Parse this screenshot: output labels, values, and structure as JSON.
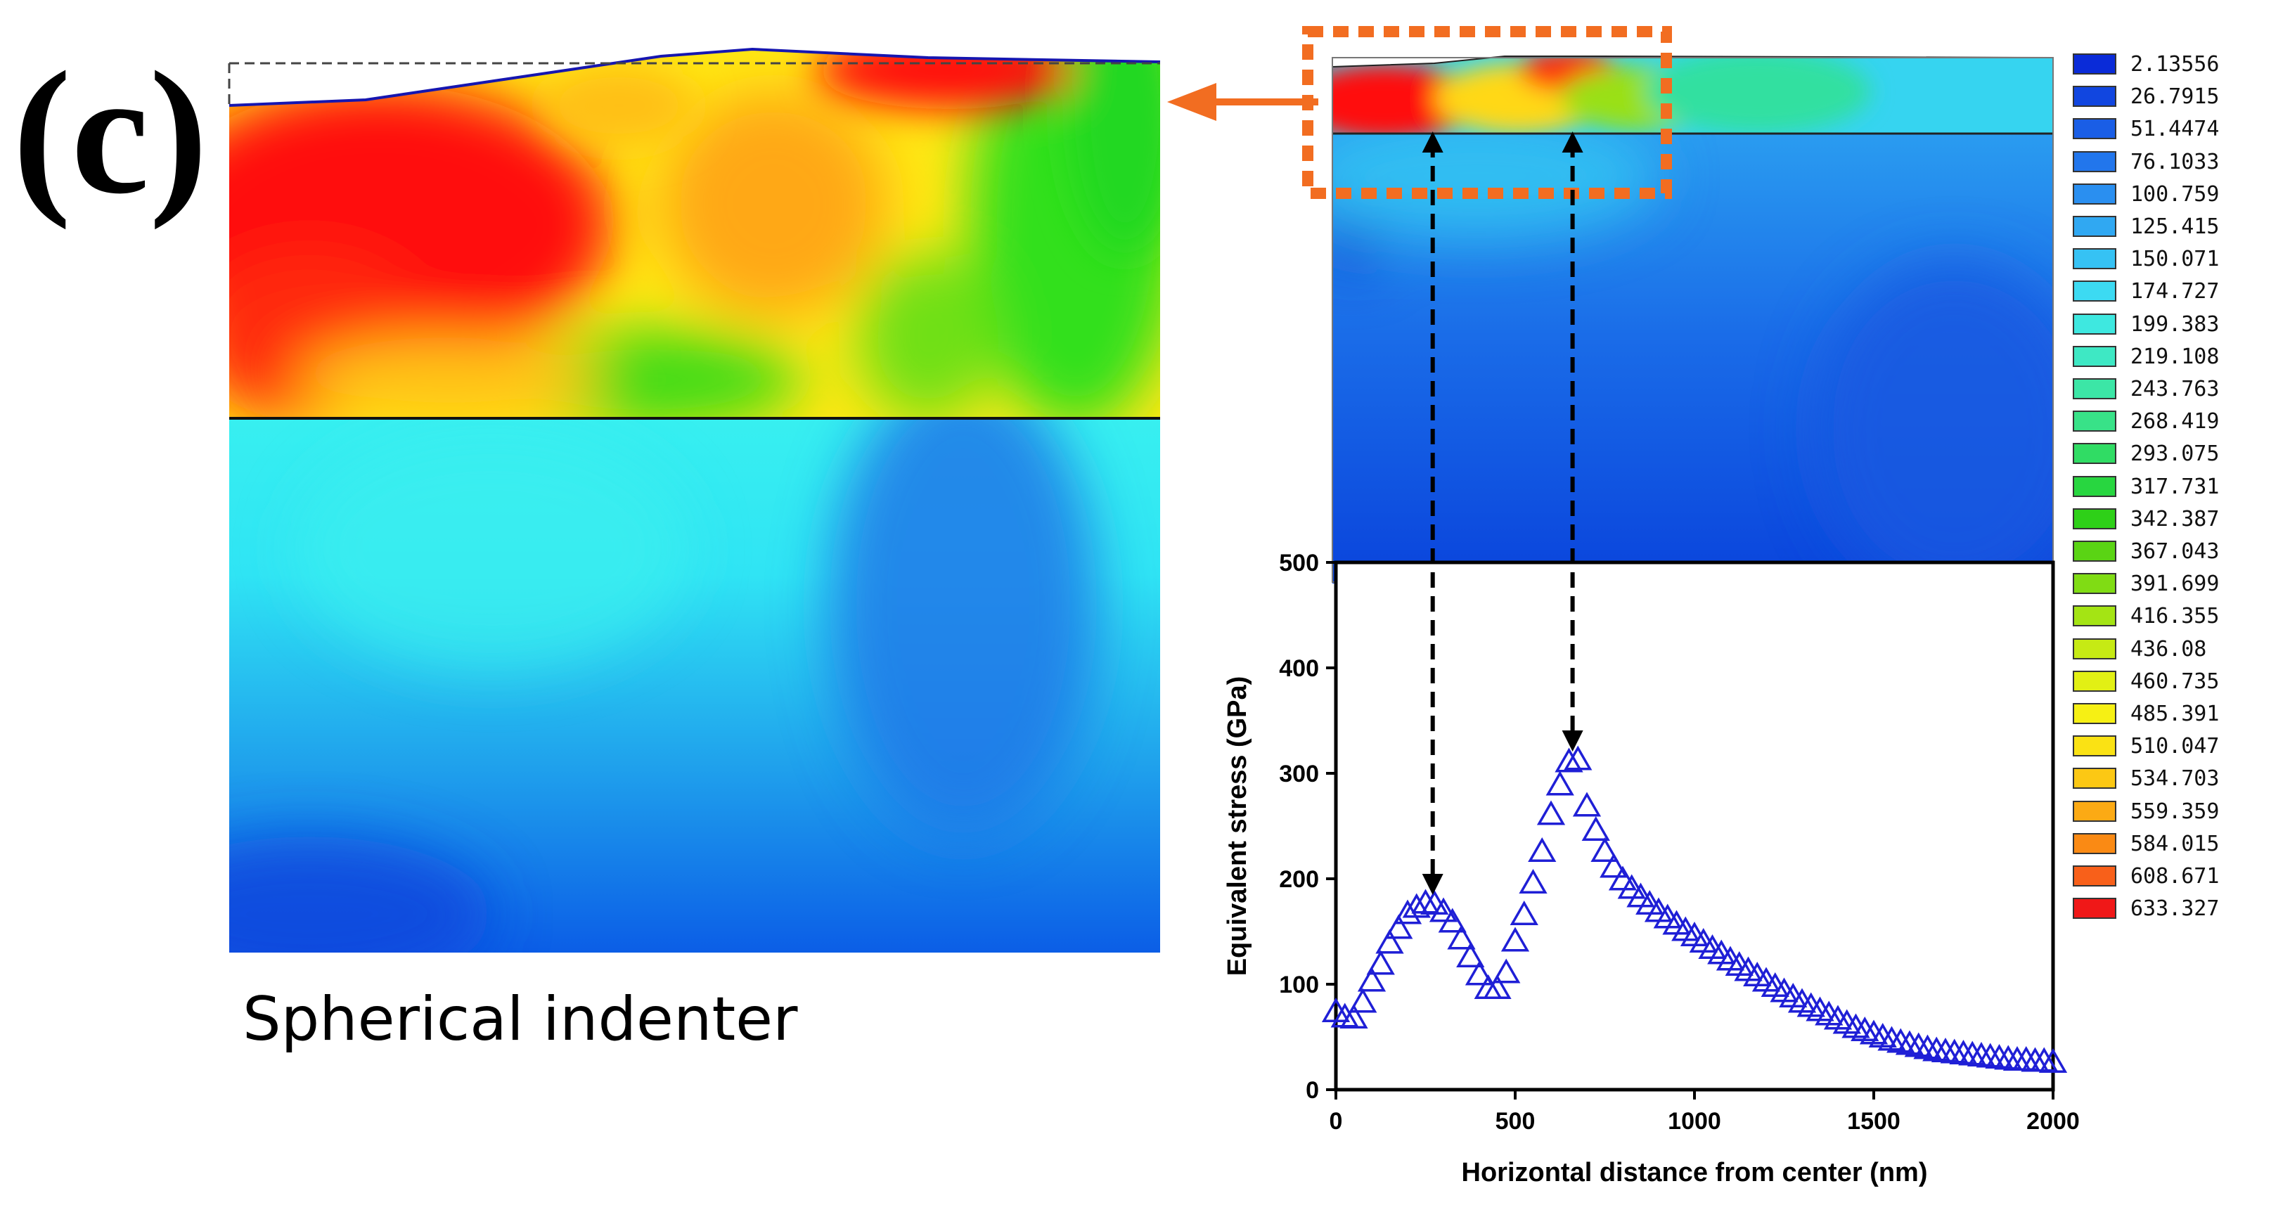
{
  "panel_label": "(c)",
  "caption": "Spherical indenter",
  "colors": {
    "accent_orange": "#f26d21",
    "marker_blue": "#1f1fd6",
    "high_stress": "#ff0000",
    "low_stress": "#0050ff"
  },
  "legend": {
    "values": [
      "2.13556",
      "26.7915",
      "51.4474",
      "76.1033",
      "100.759",
      "125.415",
      "150.071",
      "174.727",
      "199.383",
      "219.108",
      "243.763",
      "268.419",
      "293.075",
      "317.731",
      "342.387",
      "367.043",
      "391.699",
      "416.355",
      "436.08",
      "460.735",
      "485.391",
      "510.047",
      "534.703",
      "559.359",
      "584.015",
      "608.671",
      "633.327"
    ],
    "colors": [
      "#0a2bd8",
      "#1146e0",
      "#1a5ee6",
      "#2276ec",
      "#2a8ff0",
      "#30a8f2",
      "#36c2f4",
      "#3cdaf2",
      "#3ee8e0",
      "#3ee8c4",
      "#3ce6a6",
      "#38e288",
      "#30dc64",
      "#28d640",
      "#2ed018",
      "#5ad414",
      "#80dc14",
      "#a4e414",
      "#c6ea14",
      "#e2f014",
      "#f6f014",
      "#fae214",
      "#fcc814",
      "#fcaa14",
      "#fa8a14",
      "#f8601a",
      "#f01818"
    ]
  },
  "chart_data": {
    "type": "scatter",
    "title": "",
    "xlabel": "Horizontal distance from center (nm)",
    "ylabel": "Equivalent stress (GPa)",
    "xlim": [
      0,
      2000
    ],
    "ylim": [
      0,
      500
    ],
    "xticks": [
      "0",
      "500",
      "1000",
      "1500",
      "2000"
    ],
    "yticks": [
      "0",
      "100",
      "200",
      "300",
      "400",
      "500"
    ],
    "marker": "open-triangle",
    "series": [
      {
        "x": [
          0,
          25,
          50,
          75,
          100,
          125,
          150,
          175,
          200,
          225,
          250,
          275,
          300,
          325,
          350,
          375,
          400,
          425,
          450,
          475,
          500,
          525,
          550,
          575,
          600,
          625,
          650,
          675,
          700,
          725,
          750,
          775,
          800,
          825,
          850,
          875,
          900,
          925,
          950,
          975,
          1000,
          1025,
          1050,
          1075,
          1100,
          1125,
          1150,
          1175,
          1200,
          1225,
          1250,
          1275,
          1300,
          1325,
          1350,
          1375,
          1400,
          1425,
          1450,
          1475,
          1500,
          1525,
          1550,
          1575,
          1600,
          1625,
          1650,
          1675,
          1700,
          1725,
          1750,
          1775,
          1800,
          1825,
          1850,
          1875,
          1900,
          1925,
          1950,
          1975,
          2000
        ],
        "y": [
          73,
          68,
          67,
          82,
          102,
          118,
          138,
          152,
          166,
          172,
          176,
          175,
          168,
          158,
          142,
          125,
          108,
          95,
          95,
          110,
          140,
          165,
          195,
          225,
          260,
          288,
          310,
          312,
          268,
          245,
          225,
          210,
          198,
          190,
          182,
          175,
          168,
          162,
          156,
          150,
          145,
          139,
          133,
          128,
          122,
          117,
          112,
          107,
          102,
          97,
          92,
          87,
          82,
          78,
          74,
          70,
          66,
          62,
          58,
          55,
          52,
          49,
          46,
          44,
          42,
          40,
          38,
          36,
          35,
          34,
          33,
          32,
          31,
          30,
          29,
          28,
          27,
          27,
          26,
          26,
          25
        ]
      }
    ],
    "annotations": [
      {
        "type": "peak-arrow",
        "x": 270,
        "y": 176
      },
      {
        "type": "peak-arrow",
        "x": 660,
        "y": 312
      }
    ]
  }
}
